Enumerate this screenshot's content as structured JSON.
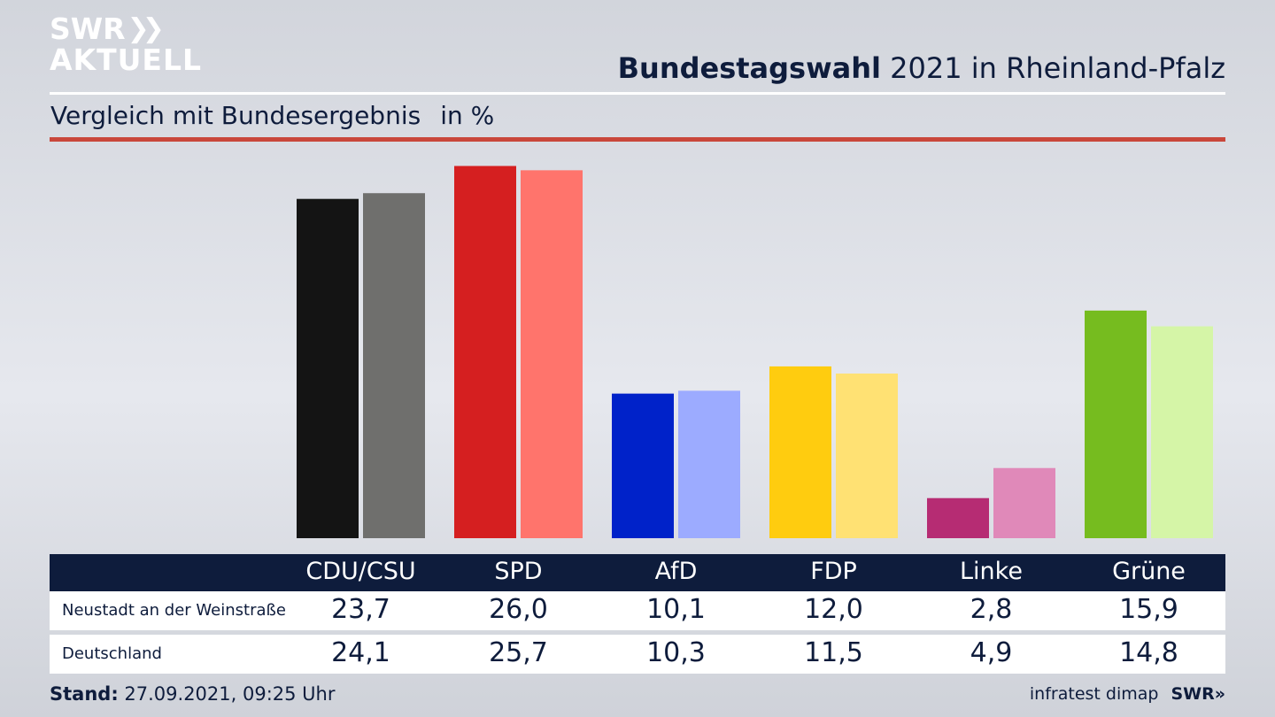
{
  "logo": {
    "line1": "SWR",
    "line2": "AKTUELL",
    "chevrons": "»"
  },
  "title": {
    "bold": "Bundestagswahl",
    "rest": " 2021 in Rheinland-Pfalz"
  },
  "subtitle": {
    "text": "Vergleich mit Bundesergebnis",
    "unit": "in %"
  },
  "table": {
    "headers": [
      "CDU/CSU",
      "SPD",
      "AfD",
      "FDP",
      "Linke",
      "Grüne"
    ],
    "rows": [
      {
        "label": "Neustadt an der Weinstraße",
        "values": [
          "23,7",
          "26,0",
          "10,1",
          "12,0",
          "2,8",
          "15,9"
        ]
      },
      {
        "label": "Deutschland",
        "values": [
          "24,1",
          "25,7",
          "10,3",
          "11,5",
          "4,9",
          "14,8"
        ]
      }
    ]
  },
  "footer": {
    "stand_label": "Stand:",
    "stand_value": " 27.09.2021, 09:25 Uhr",
    "source": "infratest dimap",
    "brand": "SWR»"
  },
  "chart_data": {
    "type": "bar",
    "categories": [
      "CDU/CSU",
      "SPD",
      "AfD",
      "FDP",
      "Linke",
      "Grüne"
    ],
    "series": [
      {
        "name": "Neustadt an der Weinstraße",
        "values": [
          23.7,
          26.0,
          10.1,
          12.0,
          2.8,
          15.9
        ],
        "colors": [
          "#141414",
          "#d51f20",
          "#0022c9",
          "#ffcc0f",
          "#b62c73",
          "#76bc1f"
        ]
      },
      {
        "name": "Deutschland",
        "values": [
          24.1,
          25.7,
          10.3,
          11.5,
          4.9,
          14.8
        ],
        "colors": [
          "#6f6f6d",
          "#ff746c",
          "#9cabff",
          "#ffe173",
          "#e089b9",
          "#d5f5a7"
        ]
      }
    ],
    "title": "Bundestagswahl 2021 in Rheinland-Pfalz",
    "subtitle": "Vergleich mit Bundesergebnis",
    "ylabel": "in %",
    "grid": false,
    "legend": "table-below"
  }
}
